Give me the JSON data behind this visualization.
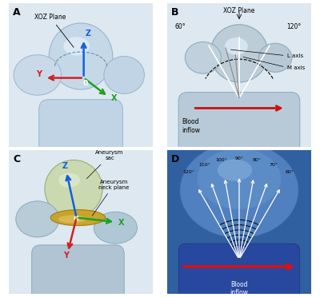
{
  "panel_labels": [
    "A",
    "B",
    "C",
    "D"
  ],
  "bg_color": "#ffffff",
  "panel_A": {
    "xoz_label": "XOZ Plane",
    "bg": "#dde8f0",
    "sac_color": "#c5d8e8",
    "sac_edge": "#9ab5cc",
    "lobe_color": "#cad9e8",
    "vessel_color": "#c0d4e5",
    "highlight": "#e5eff8",
    "arc_color": "#6090b0",
    "Z_color": "#1060e0",
    "Y_color": "#d02020",
    "X_color": "#20a020"
  },
  "panel_B": {
    "xoz_label": "XOZ Plane",
    "angle_60": "60°",
    "angle_120": "120°",
    "l_axis": "L axis",
    "m_axis": "M axis",
    "blood_inflow": "Blood\ninflow",
    "bg": "#dde8f0",
    "sac_color": "#bccdd8",
    "sac_edge": "#8aa8bc",
    "inflow_color": "#cc1010"
  },
  "panel_C": {
    "aneurysm_sac": "Aneurysm\nsac",
    "aneurysm_neck": "Aneurysm\nneck plane",
    "bg": "#dde8f0",
    "sac_color": "#c8d8a8",
    "sac_edge": "#90a878",
    "vessel_color": "#b8ccd8",
    "vessel_edge": "#8aaab8",
    "neck_color": "#c8a020",
    "neck_edge": "#a07810",
    "neck_hl": "#e0c060",
    "Z_color": "#1060e0",
    "Y_color": "#d02020",
    "X_color": "#20a020"
  },
  "panel_D": {
    "angles": [
      "60°",
      "70°",
      "80°",
      "90°",
      "100°",
      "110°",
      "120°"
    ],
    "angle_vals": [
      60,
      70,
      80,
      90,
      100,
      110,
      120
    ],
    "blood_inflow": "Blood\ninflow",
    "bg": "#3060a0",
    "dome_color": "#5080c0",
    "dome_edge": "#4070b0",
    "sac_color": "#6090c8",
    "hl_color": "#80aad8",
    "vessel_color": "#2848a0",
    "vessel_edge": "#183880",
    "inflow_color": "#dd1010"
  }
}
